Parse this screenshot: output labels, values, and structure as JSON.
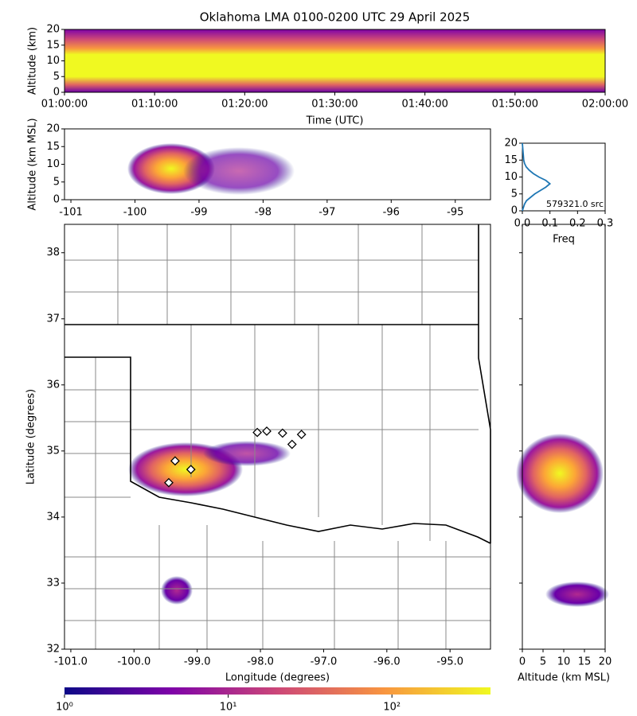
{
  "chart_data": [
    {
      "type": "heatmap",
      "title": "Oklahoma LMA 0100-0200 UTC 29 April 2025",
      "xlabel": "Time (UTC)",
      "ylabel": "Altitude (km)",
      "categories": [
        "01:00:00",
        "01:10:00",
        "01:20:00",
        "01:30:00",
        "01:40:00",
        "01:50:00",
        "02:00:00"
      ],
      "ylim": [
        0,
        20
      ],
      "yticks": [
        0,
        5,
        10,
        15,
        20
      ]
    },
    {
      "type": "heatmap",
      "ylabel": "Altitude (km MSL)",
      "xlim": [
        -101.1,
        -94.45
      ],
      "xticks": [
        -101,
        -100,
        -99,
        -98,
        -97,
        -96,
        -95
      ],
      "ylim": [
        0,
        20
      ],
      "yticks": [
        0,
        5,
        10,
        15,
        20
      ]
    },
    {
      "type": "line",
      "xlabel": "Freq",
      "annotation": "579321.0 src",
      "color": "#1f77b4",
      "xlim": [
        0,
        0.3
      ],
      "xticks": [
        {
          "value": 0,
          "label": "0.0"
        },
        0.1,
        0.2,
        0.3
      ],
      "ylim": [
        0,
        20
      ],
      "yticks": [
        0,
        5,
        10,
        15,
        20
      ],
      "y": [
        0,
        1,
        2,
        3,
        4,
        5,
        6,
        7,
        8,
        9,
        10,
        11,
        12,
        13,
        14,
        15,
        16,
        17,
        18,
        19,
        20
      ],
      "values": [
        0.0,
        0.004,
        0.008,
        0.015,
        0.03,
        0.045,
        0.065,
        0.085,
        0.1,
        0.085,
        0.06,
        0.04,
        0.025,
        0.014,
        0.008,
        0.005,
        0.004,
        0.003,
        0.002,
        0.001,
        0.0
      ]
    },
    {
      "type": "scatter",
      "xlabel": "Longitude (degrees)",
      "ylabel": "Latitude (degrees)",
      "marker_color": "#ffffff",
      "xlim": [
        -101.1,
        -94.36
      ],
      "xticks": [
        {
          "value": -101,
          "label": "-101.0"
        },
        {
          "value": -100,
          "label": "-100.0"
        },
        {
          "value": -99,
          "label": "-99.0"
        },
        {
          "value": -98,
          "label": "-98.0"
        },
        {
          "value": -97,
          "label": "-97.0"
        },
        {
          "value": -96,
          "label": "-96.0"
        },
        {
          "value": -95,
          "label": "-95.0"
        }
      ],
      "ylim": [
        32,
        38.43
      ],
      "yticks": [
        32,
        33,
        34,
        35,
        36,
        37,
        38
      ],
      "x": [
        -99.35,
        -99.1,
        -99.45,
        -98.05,
        -97.9,
        -97.65,
        -97.5,
        -97.35
      ],
      "y": [
        34.85,
        34.72,
        34.52,
        35.28,
        35.3,
        35.27,
        35.1,
        35.25
      ]
    },
    {
      "type": "heatmap",
      "xlabel": "Altitude (km MSL)",
      "xlim": [
        0,
        20
      ],
      "xticks": [
        0,
        5,
        10,
        15,
        20
      ]
    },
    {
      "type": "colorbar",
      "xlog": true,
      "xlim": [
        1,
        400
      ],
      "xticks": [
        {
          "value": 1,
          "label": "10⁰"
        },
        {
          "value": 10,
          "label": "10¹"
        },
        {
          "value": 100,
          "label": "10²"
        }
      ]
    }
  ]
}
